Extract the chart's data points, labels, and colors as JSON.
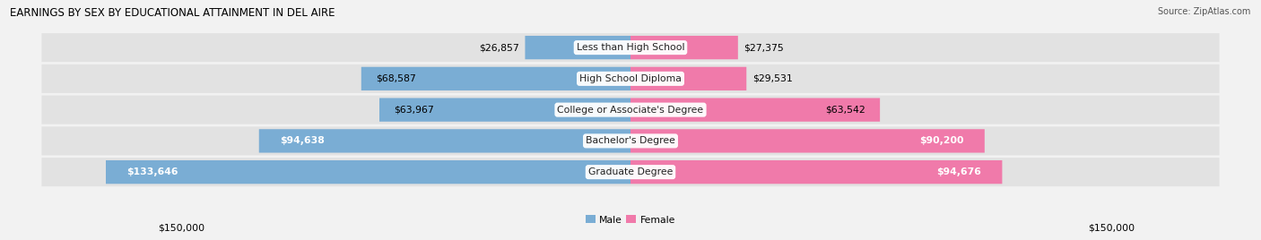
{
  "title": "EARNINGS BY SEX BY EDUCATIONAL ATTAINMENT IN DEL AIRE",
  "source": "Source: ZipAtlas.com",
  "categories": [
    "Less than High School",
    "High School Diploma",
    "College or Associate's Degree",
    "Bachelor's Degree",
    "Graduate Degree"
  ],
  "male_values": [
    26857,
    68587,
    63967,
    94638,
    133646
  ],
  "female_values": [
    27375,
    29531,
    63542,
    90200,
    94676
  ],
  "male_color": "#7aadd4",
  "female_color": "#f07aaa",
  "male_label": "Male",
  "female_label": "Female",
  "max_val": 150000,
  "bg_color": "#f2f2f2",
  "bar_bg_color": "#e2e2e2",
  "title_fontsize": 8.5,
  "label_fontsize": 7.8,
  "source_fontsize": 7.0,
  "axis_label": "$150,000"
}
